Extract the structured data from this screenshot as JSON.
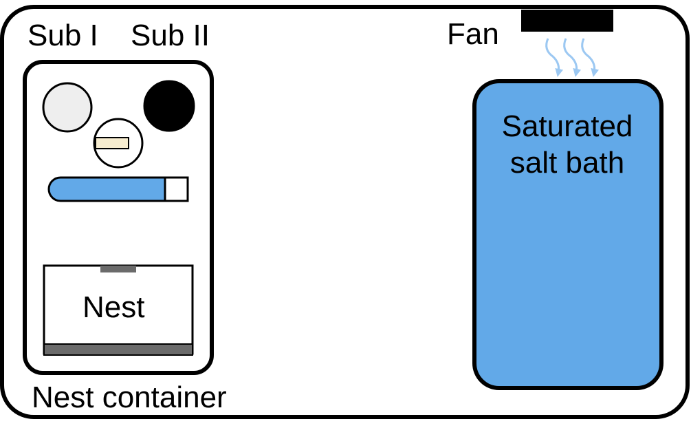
{
  "labels": {
    "sub_one": "Sub I",
    "sub_two": "Sub II",
    "fan": "Fan",
    "nest": "Nest",
    "nest_container": "Nest container",
    "bath_line_1": "Saturated",
    "bath_line_2": "salt bath"
  },
  "colors": {
    "bath_fill": "#62a9e8",
    "tube_fill": "#62a9e8",
    "airflow": "#9cc8f2",
    "sub_one_fill": "#eeeeee",
    "sub_two_fill": "#000000",
    "block_fill": "#f7edd0",
    "nest_band": "#6b6b6b"
  }
}
